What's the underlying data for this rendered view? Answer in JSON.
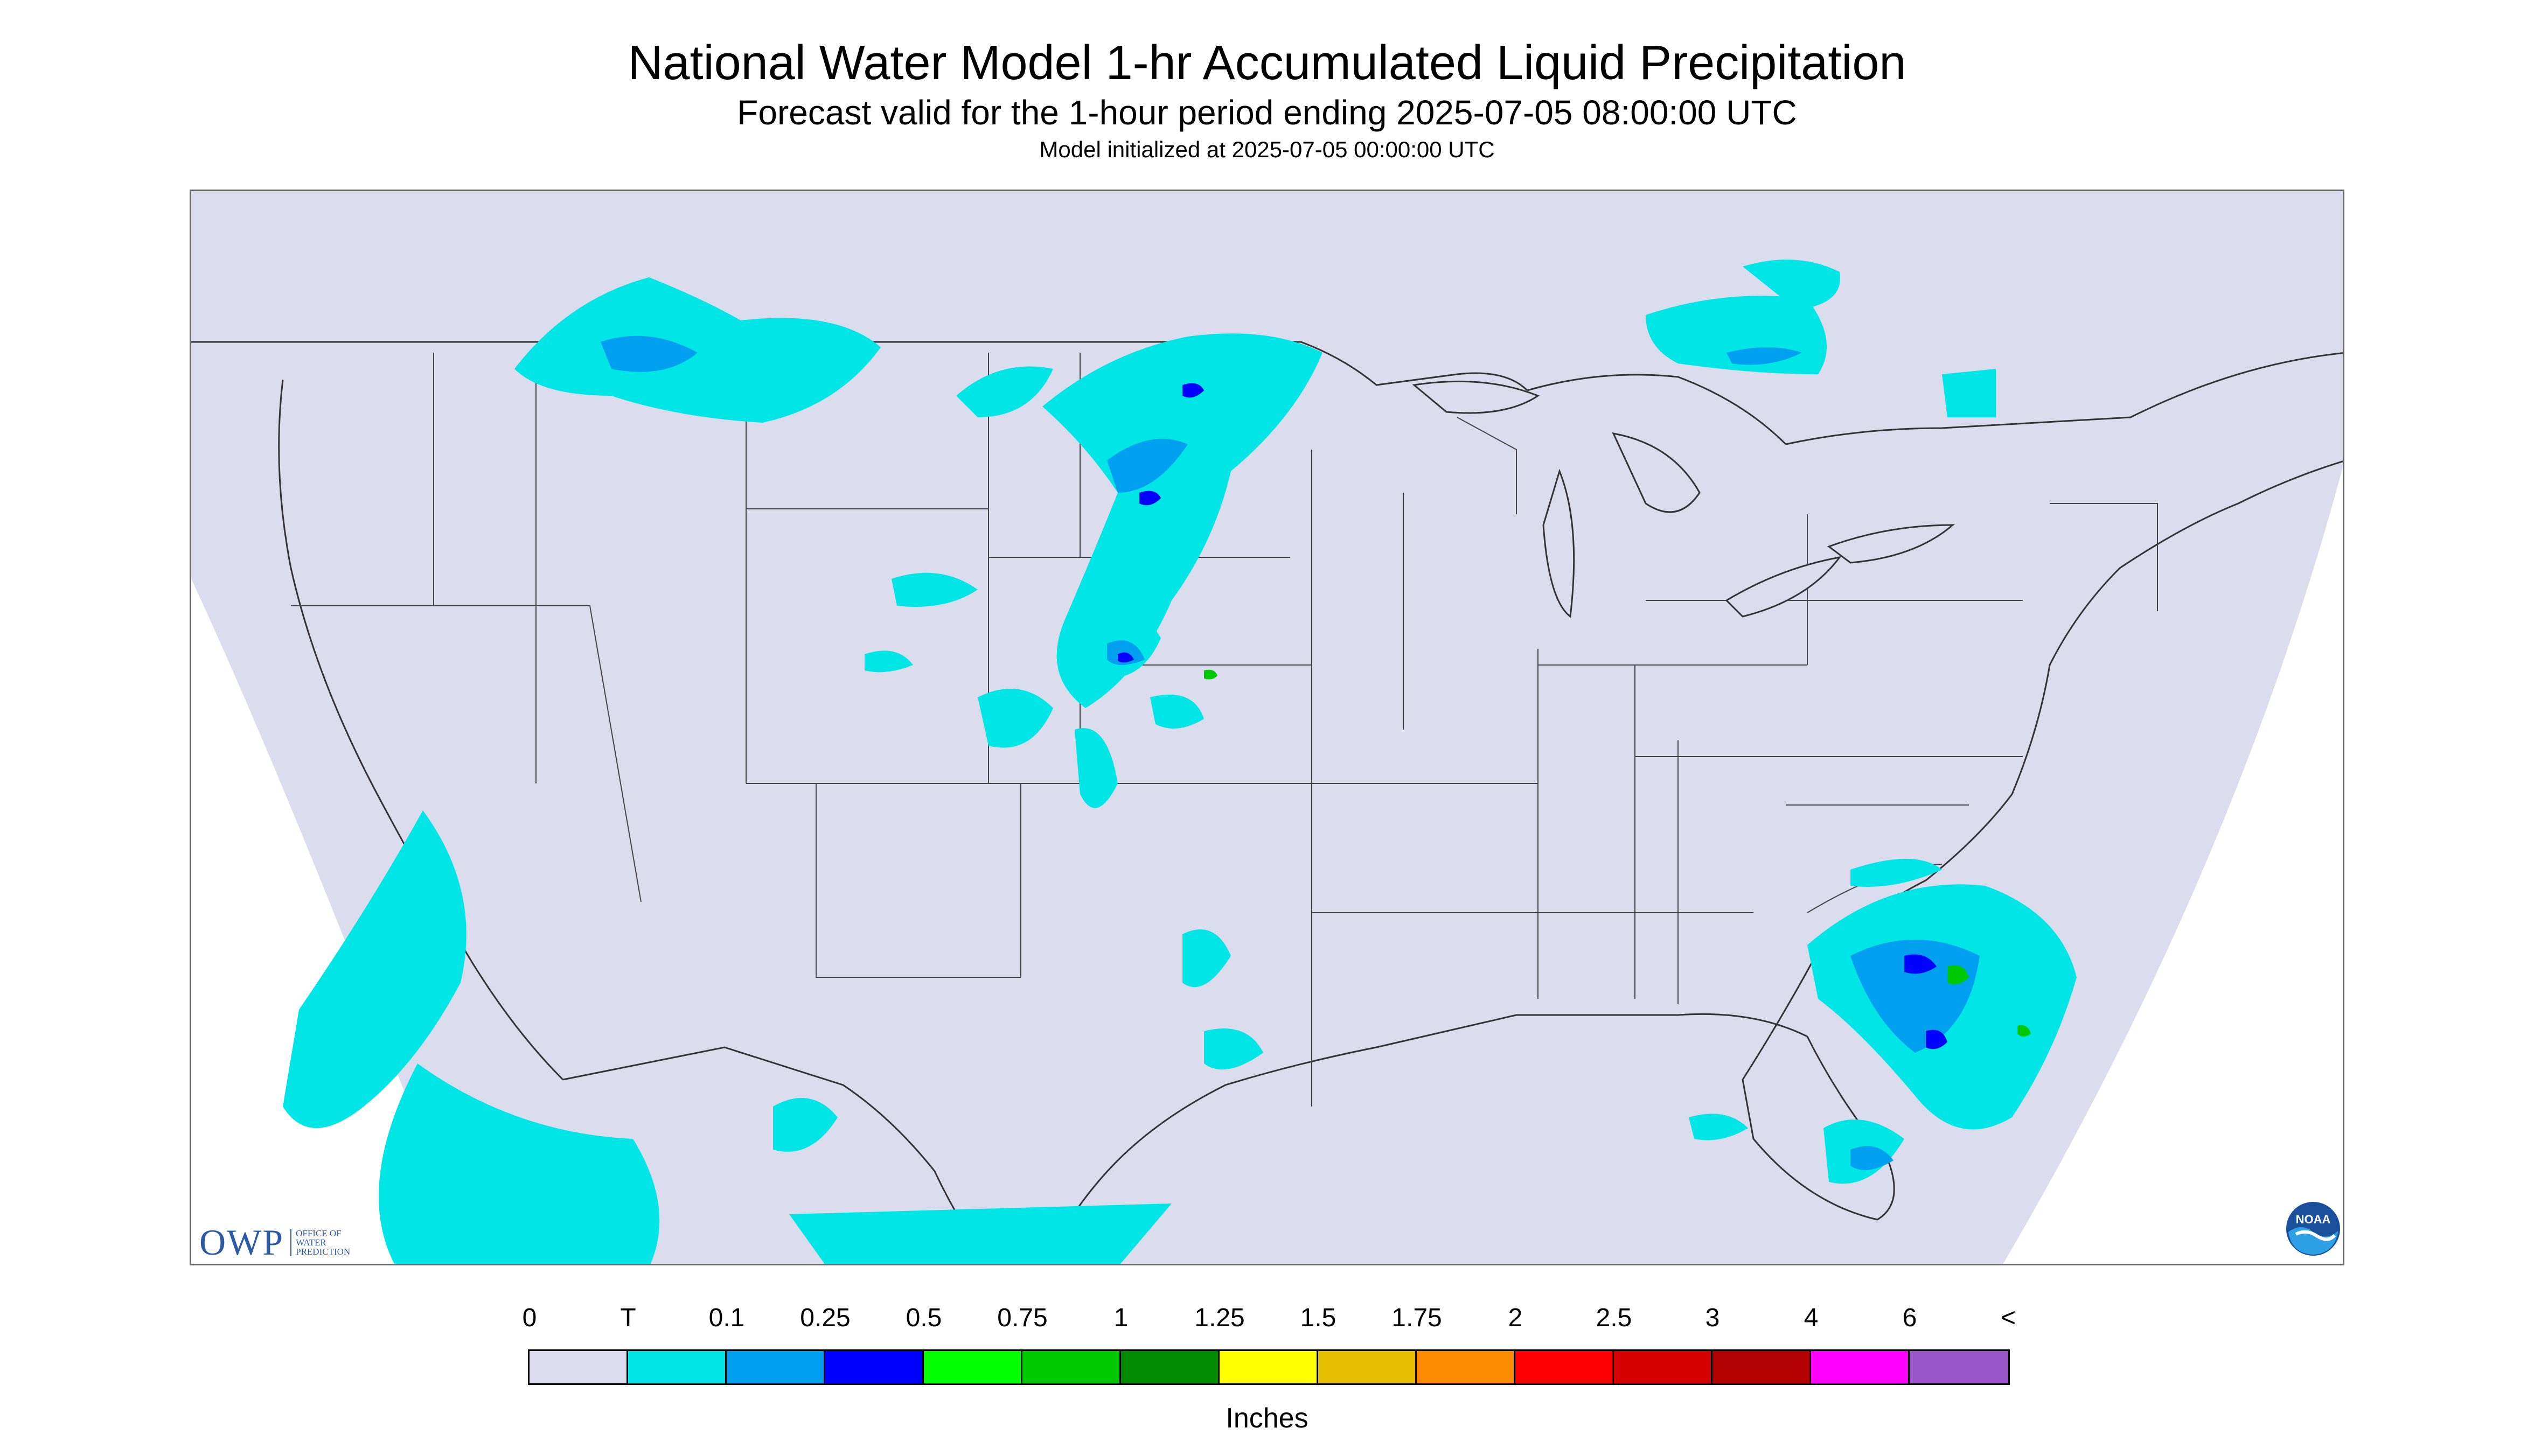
{
  "title": "National Water Model 1-hr Accumulated Liquid Precipitation",
  "subtitle": "Forecast valid for the 1-hour period ending 2025-07-05 08:00:00 UTC",
  "init_line": "Model initialized at 2025-07-05 00:00:00 UTC",
  "logos": {
    "owp_text": "OWP",
    "owp_sub": "OFFICE OF WATER PREDICTION",
    "noaa_text": "NOAA"
  },
  "legend": {
    "labels": [
      "0",
      "T",
      "0.1",
      "0.25",
      "0.5",
      "0.75",
      "1",
      "1.25",
      "1.5",
      "1.75",
      "2",
      "2.5",
      "3",
      "4",
      "6",
      "<"
    ],
    "colors": [
      "#dcdcef",
      "#00e5e5",
      "#009fef",
      "#0000ff",
      "#00ff00",
      "#00c800",
      "#008a00",
      "#ffff00",
      "#e5bf00",
      "#ff8c00",
      "#ff0000",
      "#d70000",
      "#b40000",
      "#ff00ff",
      "#9955c9"
    ],
    "units": "Inches"
  },
  "map": {
    "background_color": "#dcdcef",
    "boundary_color": "#333333",
    "precip_light": "#00e5e5",
    "precip_moderate": "#009fef",
    "precip_heavy": "#0000ff",
    "precip_very_heavy": "#00c800"
  }
}
